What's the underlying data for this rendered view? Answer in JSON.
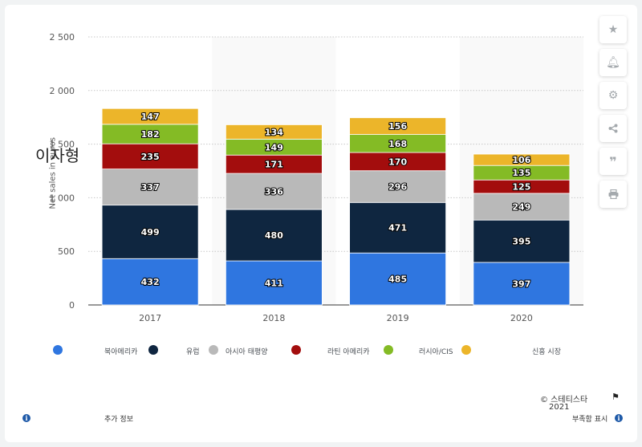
{
  "chart_data": {
    "type": "bar",
    "stacked": true,
    "categories": [
      "2017",
      "2018",
      "2019",
      "2020"
    ],
    "series": [
      {
        "name": "북아메리카",
        "color": "#2f76e0",
        "values": [
          432,
          411,
          485,
          397
        ]
      },
      {
        "name": "유럽",
        "color": "#0f2640",
        "values": [
          499,
          480,
          471,
          395
        ]
      },
      {
        "name": "아시아 태평양",
        "color": "#b9b9b9",
        "values": [
          337,
          336,
          296,
          249
        ]
      },
      {
        "name": "라틴 아메리카",
        "color": "#a30d0d",
        "values": [
          235,
          171,
          170,
          125
        ]
      },
      {
        "name": "러시아/CIS",
        "color": "#84bb25",
        "values": [
          182,
          149,
          168,
          135
        ]
      },
      {
        "name": "신흥 시장",
        "color": "#ecb52a",
        "values": [
          147,
          134,
          156,
          106
        ]
      }
    ],
    "ylim": [
      0,
      2500
    ],
    "yticks": [
      "0",
      "500",
      "1 000",
      "1 500",
      "2 000",
      "2 500"
    ],
    "ylabel": "Net sales in",
    "ylabel_unit": "euros",
    "grid": true,
    "legend_position": "bottom"
  },
  "watermark": "이자형",
  "footer": {
    "more_info": "추가 정보",
    "copyright": "© 스테티스타",
    "year": "2021",
    "show_source": "부족함 표시"
  },
  "sidebar": {
    "icons": [
      "star-icon",
      "bell-icon",
      "gear-icon",
      "share-icon",
      "quote-icon",
      "print-icon"
    ]
  }
}
